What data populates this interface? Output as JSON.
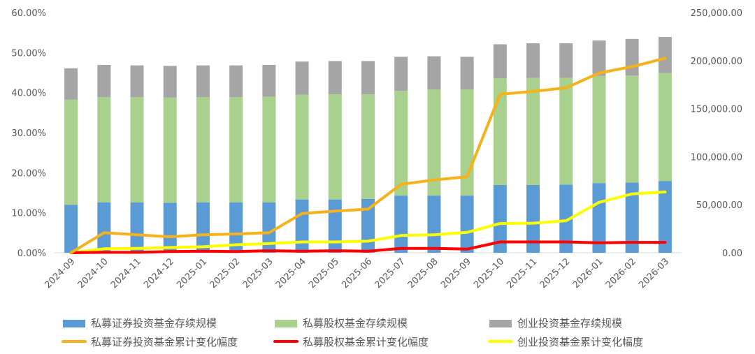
{
  "chart_data": {
    "type": "bar",
    "stacked": true,
    "categories": [
      "2024-09",
      "2024-10",
      "2024-11",
      "2024-12",
      "2025-01",
      "2025-02",
      "2025-03",
      "2025-04",
      "2025-05",
      "2025-06",
      "2025-07",
      "2025-08",
      "2025-09",
      "2025-10",
      "2025-11",
      "2025-12",
      "2026-01",
      "2026-02",
      "2026-03"
    ],
    "y_left": {
      "ylim": [
        0,
        0.6
      ],
      "ticks": [
        "0.00%",
        "10.00%",
        "20.00%",
        "30.00%",
        "40.00%",
        "50.00%",
        "60.00%"
      ]
    },
    "y_right": {
      "ylim": [
        0,
        250000
      ],
      "ticks": [
        "0.00",
        "50,000.00",
        "100,000.00",
        "150,000.00",
        "200,000.00",
        "250,000.00"
      ]
    },
    "bar_series": [
      {
        "name": "私募证券投资基金存续规模",
        "color": "#5b9bd5",
        "values": [
          50000,
          52500,
          52500,
          52000,
          52500,
          52500,
          52500,
          55500,
          55500,
          56000,
          59500,
          59500,
          59500,
          70500,
          70500,
          71000,
          72500,
          73000,
          74500
        ]
      },
      {
        "name": "私募股权基金存续规模",
        "color": "#a9d18e",
        "values": [
          109500,
          109500,
          109500,
          109500,
          109500,
          109500,
          110000,
          109000,
          109500,
          109000,
          109000,
          110500,
          110500,
          111000,
          111500,
          111000,
          111500,
          111500,
          112500
        ]
      },
      {
        "name": "创业投资基金存续规模",
        "color": "#a5a5a5",
        "values": [
          32500,
          33500,
          33000,
          33000,
          33000,
          33000,
          33000,
          34500,
          34500,
          34500,
          35500,
          34500,
          34000,
          35500,
          36000,
          36000,
          37000,
          38000,
          37500
        ]
      }
    ],
    "line_series": [
      {
        "name": "私募证券投资基金累计变化幅度",
        "color": "#f5b21b",
        "values": [
          0.0,
          0.05,
          0.045,
          0.04,
          0.045,
          0.047,
          0.05,
          0.098,
          0.104,
          0.109,
          0.171,
          0.182,
          0.19,
          0.396,
          0.403,
          0.412,
          0.449,
          0.465,
          0.486
        ]
      },
      {
        "name": "私募股权基金累计变化幅度",
        "color": "#ff0000",
        "values": [
          0.0,
          0.001,
          0.001,
          0.003,
          0.004,
          0.003,
          0.005,
          0.004,
          0.005,
          0.004,
          0.011,
          0.011,
          0.009,
          0.027,
          0.027,
          0.027,
          0.025,
          0.026,
          0.026
        ]
      },
      {
        "name": "创业投资基金累计变化幅度",
        "color": "#ffff00",
        "values": [
          0.0,
          0.01,
          0.011,
          0.013,
          0.015,
          0.02,
          0.023,
          0.027,
          0.027,
          0.029,
          0.043,
          0.045,
          0.051,
          0.073,
          0.074,
          0.08,
          0.126,
          0.147,
          0.152
        ]
      }
    ],
    "legend_position": "bottom",
    "grid": false
  }
}
